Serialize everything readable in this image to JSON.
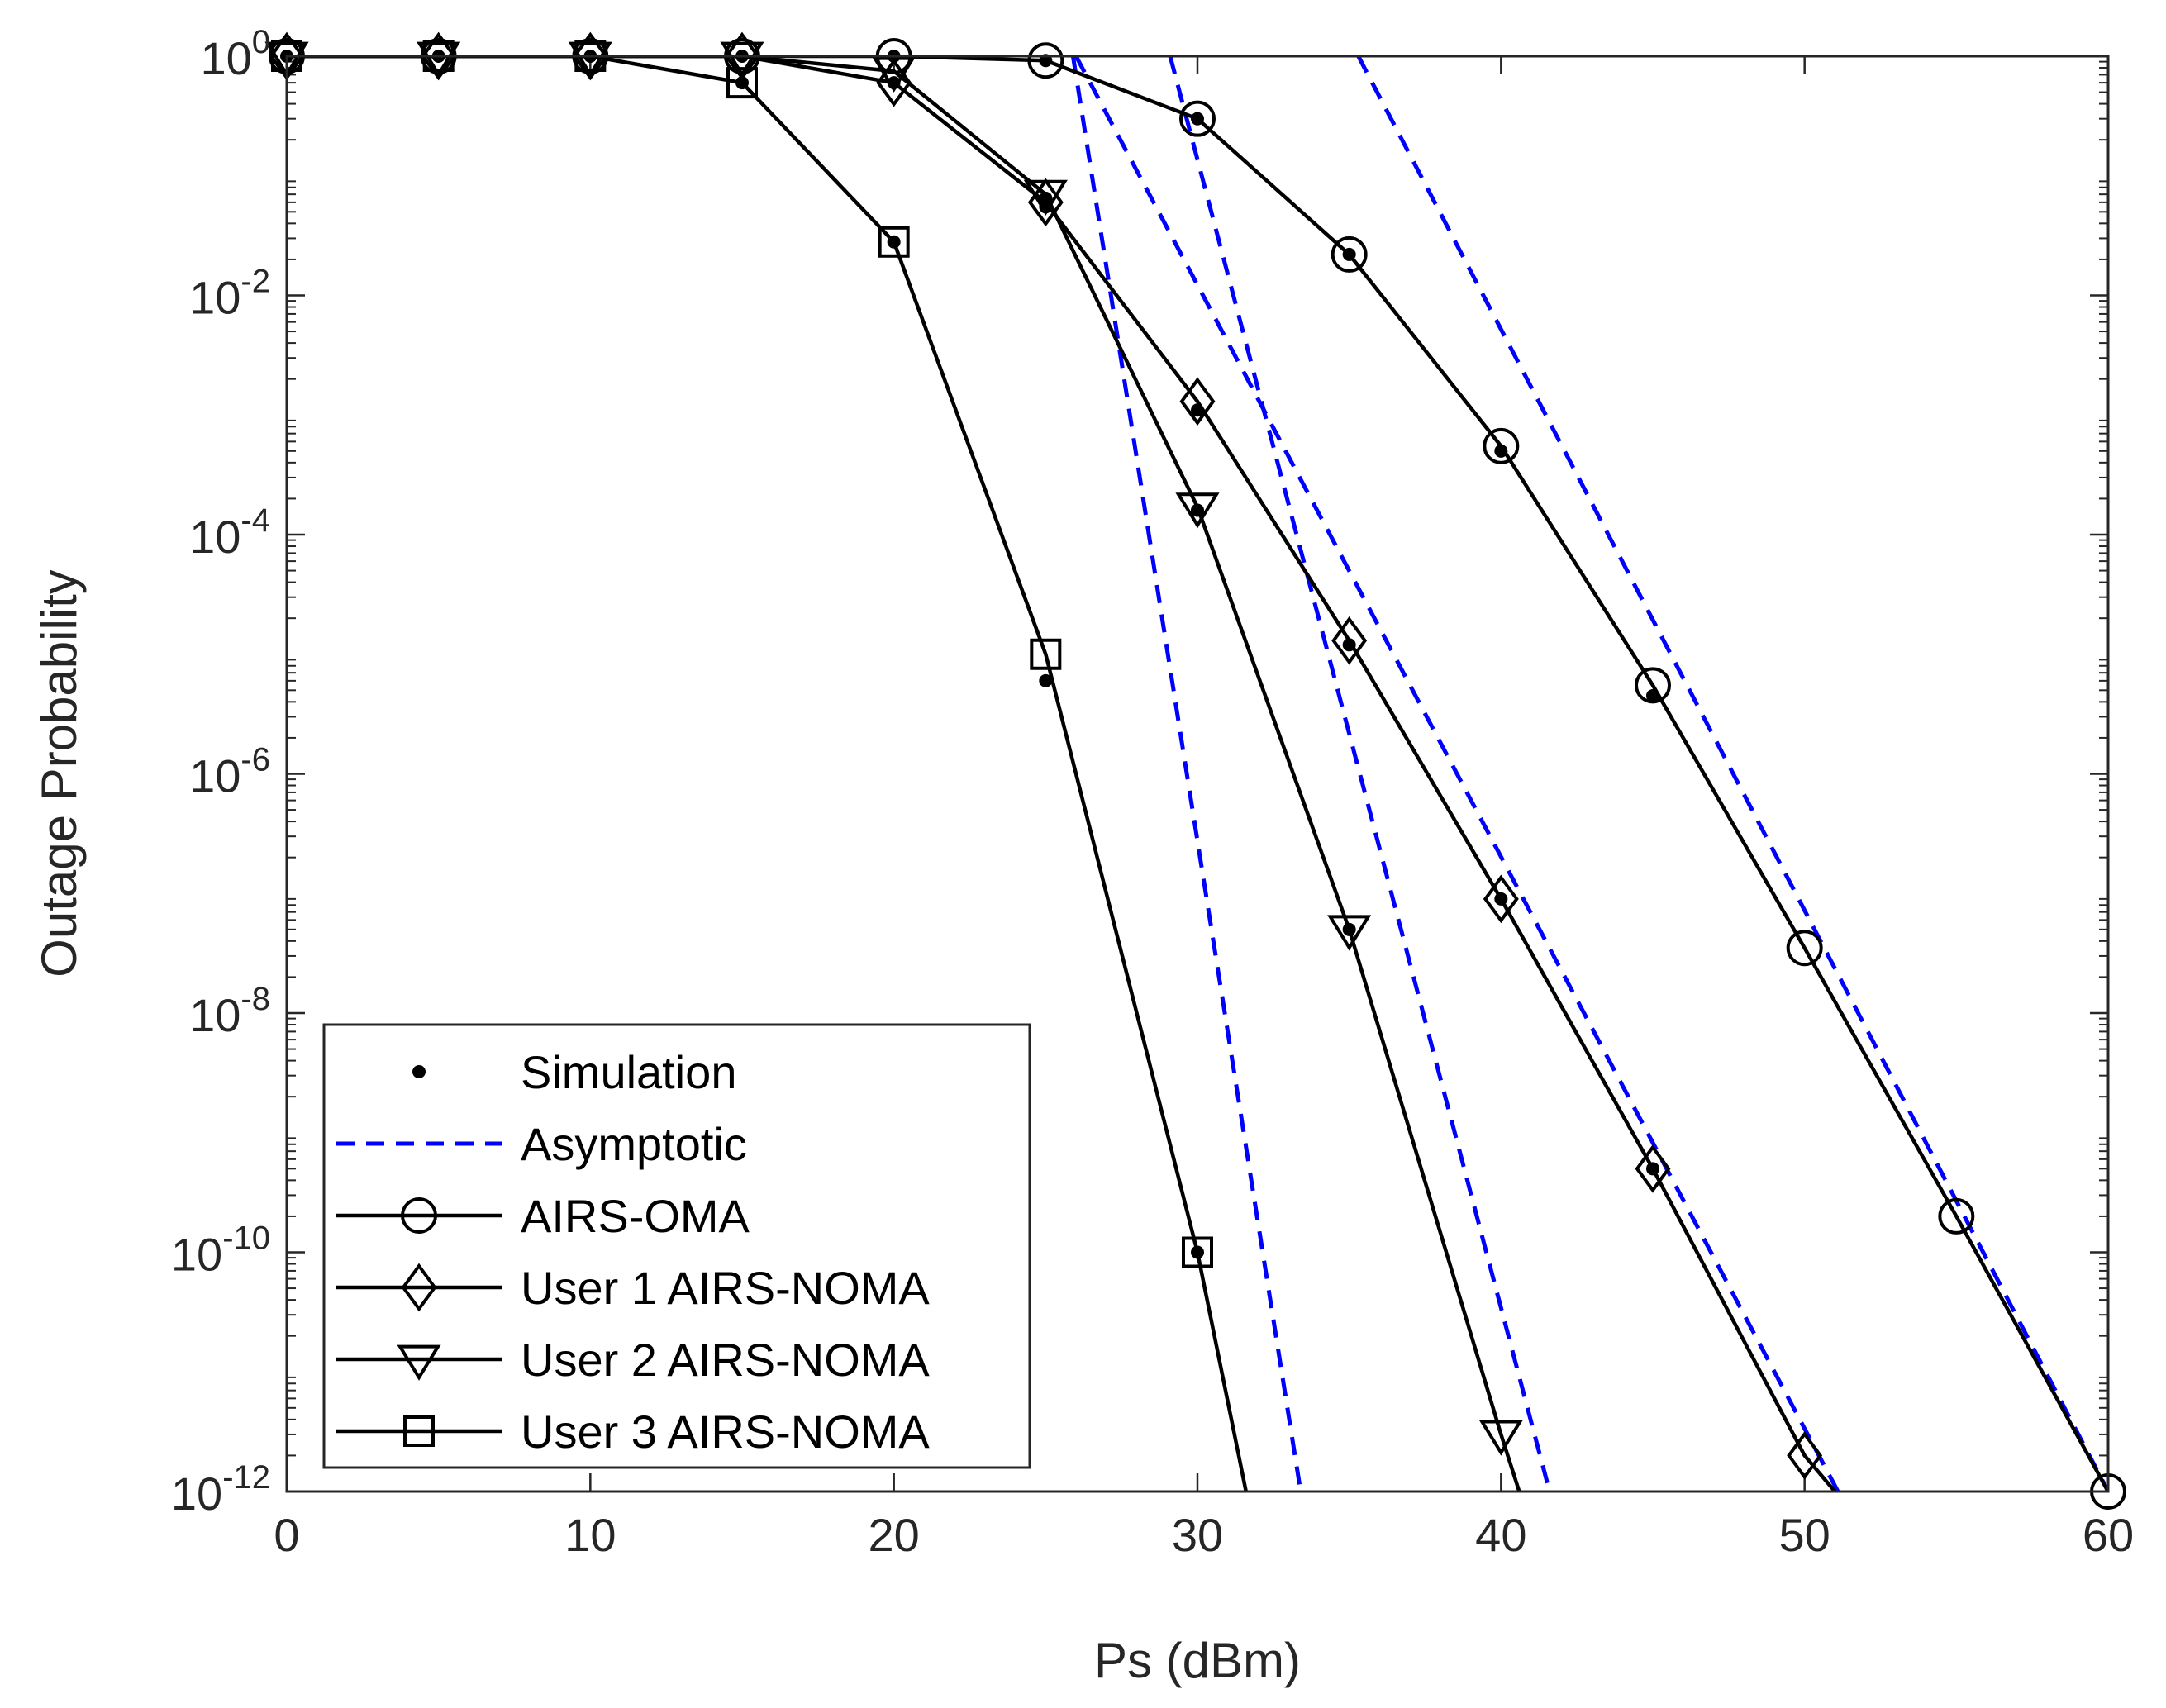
{
  "chart_data": {
    "type": "line",
    "title": "",
    "xlabel": "Ps (dBm)",
    "ylabel": "Outage Probability",
    "xscale": "linear",
    "yscale": "log",
    "xlim": [
      0,
      60
    ],
    "ylim": [
      1e-12,
      1
    ],
    "xticks": [
      0,
      10,
      20,
      30,
      40,
      50,
      60
    ],
    "xtick_labels": [
      "0",
      "10",
      "20",
      "30",
      "40",
      "50",
      "60"
    ],
    "yticks": [
      {
        "base": "10",
        "exp": "0",
        "value": 1
      },
      {
        "base": "10",
        "exp": "-2",
        "value": 0.01
      },
      {
        "base": "10",
        "exp": "-4",
        "value": 0.0001
      },
      {
        "base": "10",
        "exp": "-6",
        "value": 1e-06
      },
      {
        "base": "10",
        "exp": "-8",
        "value": 1e-08
      },
      {
        "base": "10",
        "exp": "-10",
        "value": 1e-10
      },
      {
        "base": "10",
        "exp": "-12",
        "value": 1e-12
      }
    ],
    "grid": false,
    "legend_position": "bottom-left",
    "legend": [
      {
        "label": "Simulation",
        "style": "dot",
        "color": "#000000"
      },
      {
        "label": "Asymptotic",
        "style": "dashed",
        "color": "#0000FF"
      },
      {
        "label": "AIRS-OMA",
        "style": "solid",
        "marker": "circle",
        "color": "#000000"
      },
      {
        "label": "User 1 AIRS-NOMA",
        "style": "solid",
        "marker": "diamond",
        "color": "#000000"
      },
      {
        "label": "User 2 AIRS-NOMA",
        "style": "solid",
        "marker": "triangle-down",
        "color": "#000000"
      },
      {
        "label": "User 3 AIRS-NOMA",
        "style": "solid",
        "marker": "square",
        "color": "#000000"
      }
    ],
    "series": [
      {
        "name": "AIRS-OMA",
        "marker": "circle",
        "color": "#000000",
        "x": [
          0,
          5,
          10,
          15,
          20,
          25,
          30,
          35,
          40,
          45,
          50,
          55,
          60
        ],
        "y": [
          1,
          1,
          1,
          1,
          1,
          0.92,
          0.3,
          0.022,
          0.00055,
          5.5e-06,
          3.5e-08,
          2e-10,
          1e-12
        ]
      },
      {
        "name": "User 1 AIRS-NOMA",
        "marker": "diamond",
        "color": "#000000",
        "x": [
          0,
          5,
          10,
          15,
          20,
          25,
          30,
          35,
          40,
          45,
          50,
          51
        ],
        "y": [
          1,
          1,
          1,
          1,
          0.6,
          0.06,
          0.0013,
          1.3e-05,
          9e-08,
          5e-10,
          2e-12,
          1e-12
        ]
      },
      {
        "name": "User 2 AIRS-NOMA",
        "marker": "triangle-down",
        "color": "#000000",
        "x": [
          0,
          5,
          10,
          15,
          20,
          25,
          30,
          35,
          40,
          40.6
        ],
        "y": [
          1,
          1,
          1,
          1,
          0.75,
          0.07,
          0.00017,
          5e-08,
          3e-12,
          1e-12
        ]
      },
      {
        "name": "User 3 AIRS-NOMA",
        "marker": "square",
        "color": "#000000",
        "x": [
          0,
          5,
          10,
          15,
          20,
          25,
          30,
          31.6
        ],
        "y": [
          1,
          1,
          1,
          0.6,
          0.028,
          1e-05,
          1e-10,
          1e-12
        ]
      }
    ],
    "simulation": [
      {
        "x": 0,
        "y": 1
      },
      {
        "x": 5,
        "y": 1
      },
      {
        "x": 10,
        "y": 1
      },
      {
        "x": 15,
        "y": 1
      },
      {
        "x": 20,
        "y": 1
      },
      {
        "x": 25,
        "y": 0.92
      },
      {
        "x": 30,
        "y": 0.3
      },
      {
        "x": 35,
        "y": 0.022
      },
      {
        "x": 40,
        "y": 0.0005
      },
      {
        "x": 45,
        "y": 4.5e-06
      },
      {
        "x": 20,
        "y": 0.6
      },
      {
        "x": 25,
        "y": 0.055
      },
      {
        "x": 30,
        "y": 0.0011
      },
      {
        "x": 35,
        "y": 1.2e-05
      },
      {
        "x": 40,
        "y": 9e-08
      },
      {
        "x": 45,
        "y": 5e-10
      },
      {
        "x": 25,
        "y": 0.065
      },
      {
        "x": 30,
        "y": 0.00016
      },
      {
        "x": 35,
        "y": 5e-08
      },
      {
        "x": 15,
        "y": 0.6
      },
      {
        "x": 20,
        "y": 0.028
      },
      {
        "x": 25,
        "y": 6e-06
      },
      {
        "x": 30,
        "y": 1e-10
      }
    ],
    "asymptotic": [
      {
        "name": "AIRS-OMA asymptotic",
        "color": "#0000FF",
        "x": [
          35.3,
          60
        ],
        "y": [
          1,
          1e-12
        ]
      },
      {
        "name": "User 1 asymptotic",
        "color": "#0000FF",
        "x": [
          26,
          51.1
        ],
        "y": [
          1,
          1e-12
        ]
      },
      {
        "name": "User 2 asymptotic",
        "color": "#0000FF",
        "x": [
          29.1,
          41.6
        ],
        "y": [
          1,
          1e-12
        ]
      },
      {
        "name": "User 3 asymptotic",
        "color": "#0000FF",
        "x": [
          25.9,
          33.4
        ],
        "y": [
          1,
          1e-12
        ]
      }
    ]
  }
}
